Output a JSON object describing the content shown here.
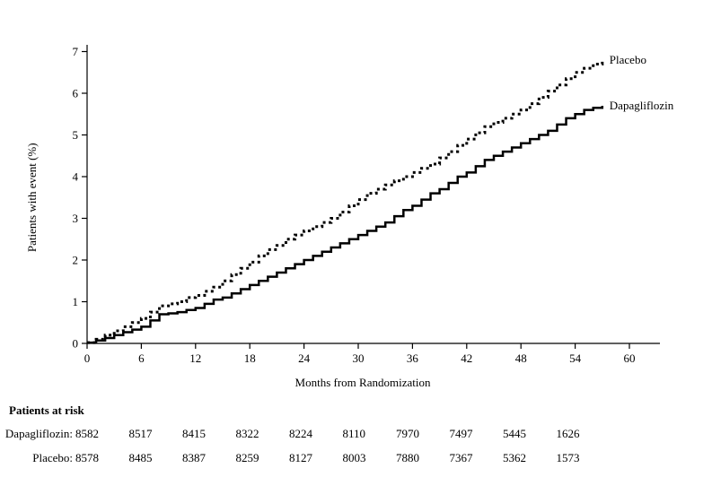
{
  "chart_data": {
    "type": "line",
    "title": "",
    "xlabel": "Months from Randomization",
    "ylabel": "Patients with event (%)",
    "xlim": [
      0,
      63
    ],
    "ylim": [
      0,
      7
    ],
    "xticks": [
      0,
      6,
      12,
      18,
      24,
      30,
      36,
      42,
      48,
      54,
      60
    ],
    "yticks": [
      0,
      1,
      2,
      3,
      4,
      5,
      6,
      7
    ],
    "grid": false,
    "legend": "end-of-line-labels",
    "step_interpolation": true,
    "series": [
      {
        "name": "Placebo",
        "line_style": "dashed",
        "color": "#000000",
        "x": [
          0,
          1,
          2,
          3,
          4,
          5,
          6,
          7,
          8,
          9,
          10,
          11,
          12,
          13,
          14,
          15,
          16,
          17,
          18,
          19,
          20,
          21,
          22,
          23,
          24,
          25,
          26,
          27,
          28,
          29,
          30,
          31,
          32,
          33,
          34,
          35,
          36,
          37,
          38,
          39,
          40,
          41,
          42,
          43,
          44,
          45,
          46,
          47,
          48,
          49,
          50,
          51,
          52,
          53,
          54,
          55,
          56,
          57
        ],
        "y": [
          0.02,
          0.1,
          0.2,
          0.3,
          0.4,
          0.5,
          0.6,
          0.75,
          0.9,
          0.95,
          1.0,
          1.1,
          1.15,
          1.25,
          1.35,
          1.5,
          1.65,
          1.8,
          1.95,
          2.1,
          2.25,
          2.35,
          2.5,
          2.6,
          2.7,
          2.8,
          2.9,
          3.0,
          3.15,
          3.3,
          3.45,
          3.6,
          3.7,
          3.8,
          3.9,
          4.0,
          4.1,
          4.2,
          4.3,
          4.45,
          4.6,
          4.75,
          4.9,
          5.05,
          5.2,
          5.3,
          5.4,
          5.5,
          5.6,
          5.75,
          5.9,
          6.05,
          6.2,
          6.35,
          6.5,
          6.6,
          6.7,
          6.8
        ]
      },
      {
        "name": "Dapagliflozin",
        "line_style": "solid",
        "color": "#000000",
        "x": [
          0,
          1,
          2,
          3,
          4,
          5,
          6,
          7,
          8,
          9,
          10,
          11,
          12,
          13,
          14,
          15,
          16,
          17,
          18,
          19,
          20,
          21,
          22,
          23,
          24,
          25,
          26,
          27,
          28,
          29,
          30,
          31,
          32,
          33,
          34,
          35,
          36,
          37,
          38,
          39,
          40,
          41,
          42,
          43,
          44,
          45,
          46,
          47,
          48,
          49,
          50,
          51,
          52,
          53,
          54,
          55,
          56,
          57
        ],
        "y": [
          0.02,
          0.07,
          0.13,
          0.2,
          0.27,
          0.33,
          0.4,
          0.55,
          0.7,
          0.72,
          0.75,
          0.8,
          0.85,
          0.95,
          1.05,
          1.1,
          1.2,
          1.3,
          1.4,
          1.5,
          1.6,
          1.7,
          1.8,
          1.9,
          2.0,
          2.1,
          2.2,
          2.3,
          2.4,
          2.5,
          2.6,
          2.7,
          2.8,
          2.9,
          3.05,
          3.2,
          3.3,
          3.45,
          3.6,
          3.7,
          3.85,
          4.0,
          4.1,
          4.25,
          4.4,
          4.5,
          4.6,
          4.7,
          4.8,
          4.9,
          5.0,
          5.1,
          5.25,
          5.4,
          5.5,
          5.6,
          5.65,
          5.7
        ]
      }
    ]
  },
  "risk_table": {
    "title": "Patients at risk",
    "timepoints": [
      0,
      6,
      12,
      18,
      24,
      30,
      36,
      42,
      48,
      54
    ],
    "rows": [
      {
        "label": "Dapagliflozin:",
        "values": [
          "8582",
          "8517",
          "8415",
          "8322",
          "8224",
          "8110",
          "7970",
          "7497",
          "5445",
          "1626"
        ]
      },
      {
        "label": "Placebo:",
        "values": [
          "8578",
          "8485",
          "8387",
          "8259",
          "8127",
          "8003",
          "7880",
          "7367",
          "5362",
          "1573"
        ]
      }
    ]
  },
  "colors": {
    "line": "#000000",
    "background": "#ffffff"
  }
}
